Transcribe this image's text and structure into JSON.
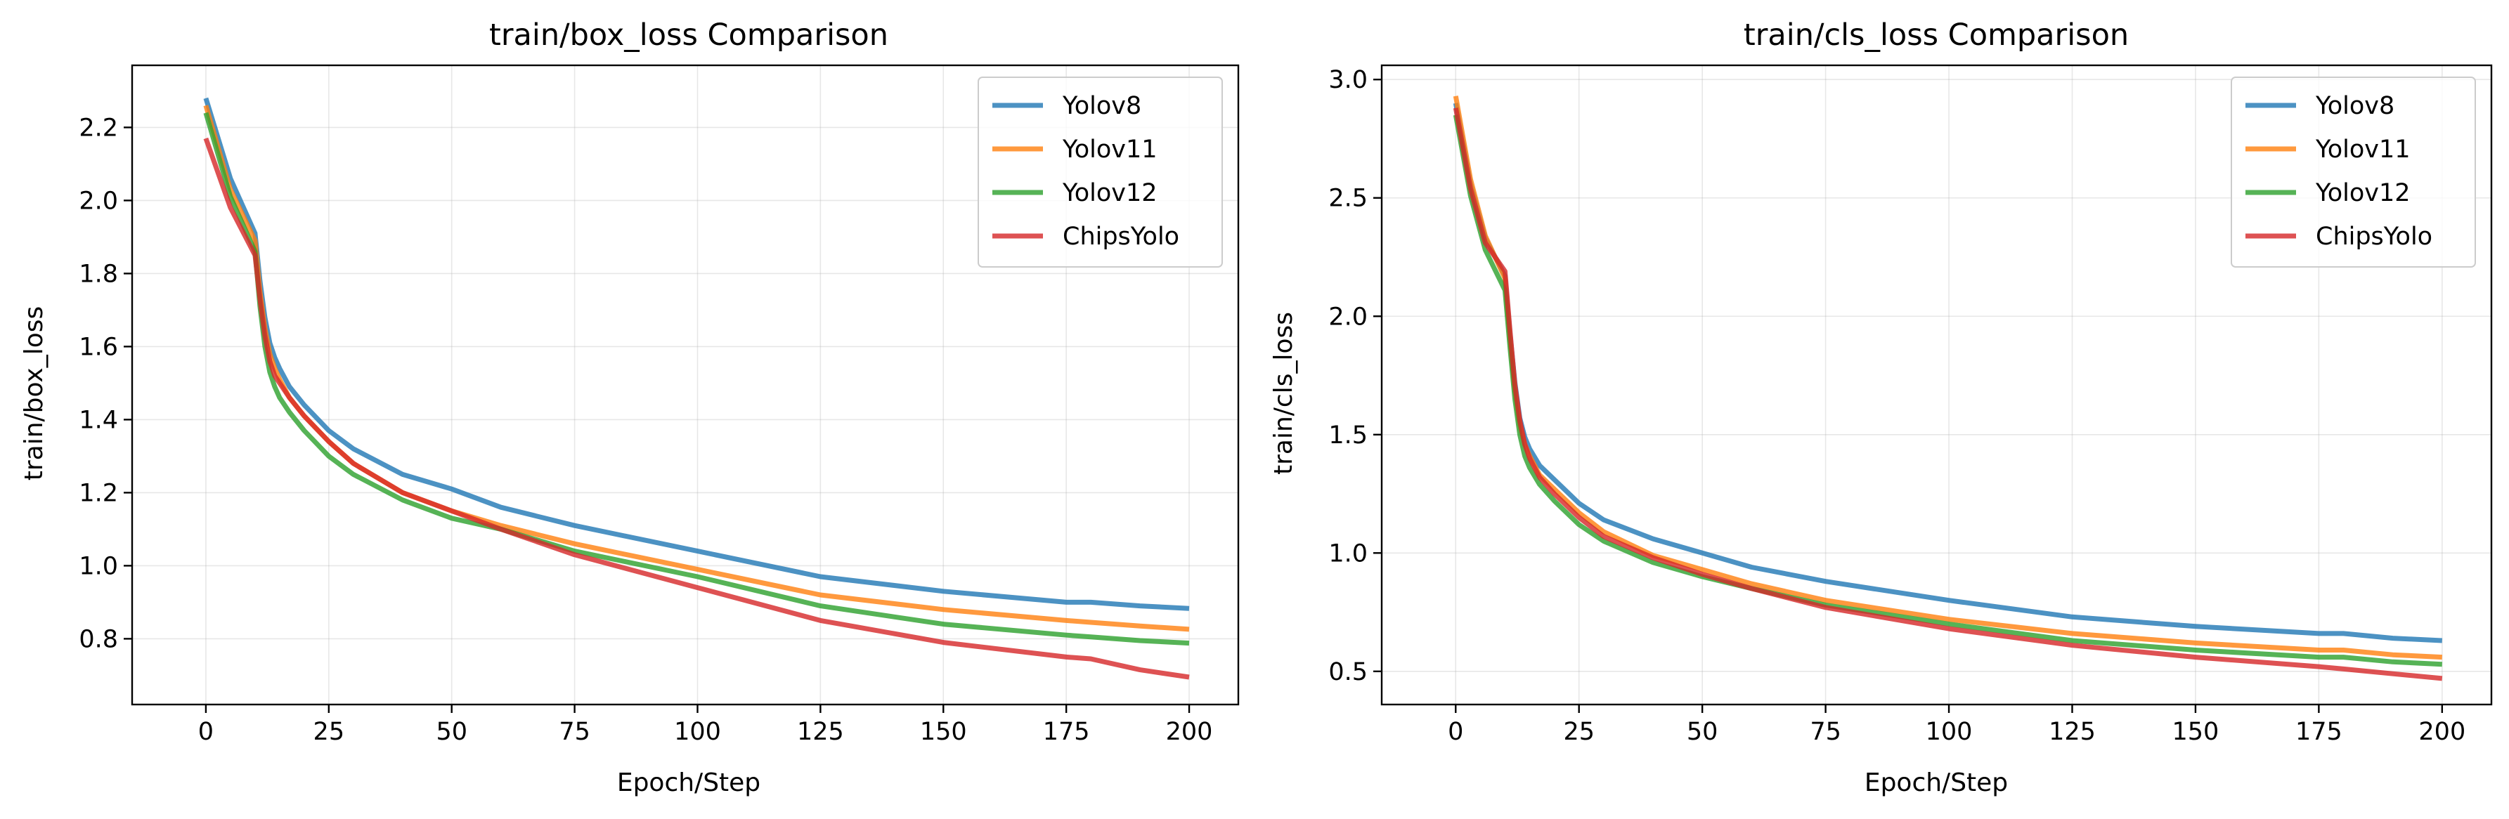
{
  "chart_data": [
    {
      "type": "line",
      "title": "train/box_loss Comparison",
      "xlabel": "Epoch/Step",
      "ylabel": "train/box_loss",
      "xlim": [
        -15,
        210
      ],
      "ylim": [
        0.62,
        2.37
      ],
      "xticks": [
        0,
        25,
        50,
        75,
        100,
        125,
        150,
        175,
        200
      ],
      "xtick_labels": [
        "0",
        "25",
        "50",
        "75",
        "100",
        "125",
        "150",
        "175",
        "200"
      ],
      "yticks": [
        0.8,
        1.0,
        1.2,
        1.4,
        1.6,
        1.8,
        2.0,
        2.2
      ],
      "ytick_labels": [
        "0.8",
        "1.0",
        "1.2",
        "1.4",
        "1.6",
        "1.8",
        "2.0",
        "2.2"
      ],
      "grid": true,
      "legend": "top-right",
      "x": [
        0,
        5,
        10,
        11,
        12,
        13,
        14,
        15,
        17,
        20,
        25,
        30,
        40,
        50,
        60,
        75,
        100,
        125,
        150,
        175,
        180,
        185,
        190,
        200
      ],
      "series": [
        {
          "name": "Yolov8",
          "color": "#1f77b4",
          "values": [
            2.28,
            2.06,
            1.91,
            1.78,
            1.68,
            1.61,
            1.57,
            1.54,
            1.49,
            1.44,
            1.37,
            1.32,
            1.25,
            1.21,
            1.16,
            1.11,
            1.04,
            0.97,
            0.93,
            0.9,
            0.9,
            0.895,
            0.89,
            0.883
          ]
        },
        {
          "name": "Yolov11",
          "color": "#ff7f0e",
          "values": [
            2.26,
            2.03,
            1.89,
            1.75,
            1.65,
            1.58,
            1.54,
            1.51,
            1.46,
            1.41,
            1.34,
            1.28,
            1.2,
            1.15,
            1.11,
            1.06,
            0.99,
            0.92,
            0.88,
            0.85,
            0.845,
            0.84,
            0.835,
            0.826
          ]
        },
        {
          "name": "Yolov12",
          "color": "#2ca02c",
          "values": [
            2.24,
            2.01,
            1.86,
            1.71,
            1.6,
            1.53,
            1.49,
            1.46,
            1.42,
            1.37,
            1.3,
            1.25,
            1.18,
            1.13,
            1.1,
            1.04,
            0.97,
            0.89,
            0.84,
            0.81,
            0.805,
            0.8,
            0.795,
            0.788
          ]
        },
        {
          "name": "ChipsYolo",
          "color": "#d62728",
          "values": [
            2.17,
            1.98,
            1.85,
            1.73,
            1.63,
            1.56,
            1.52,
            1.5,
            1.46,
            1.41,
            1.34,
            1.28,
            1.2,
            1.15,
            1.1,
            1.03,
            0.94,
            0.85,
            0.79,
            0.75,
            0.745,
            0.73,
            0.715,
            0.695
          ]
        }
      ]
    },
    {
      "type": "line",
      "title": "train/cls_loss Comparison",
      "xlabel": "Epoch/Step",
      "ylabel": "train/cls_loss",
      "xlim": [
        -15,
        210
      ],
      "ylim": [
        0.36,
        3.06
      ],
      "xticks": [
        0,
        25,
        50,
        75,
        100,
        125,
        150,
        175,
        200
      ],
      "xtick_labels": [
        "0",
        "25",
        "50",
        "75",
        "100",
        "125",
        "150",
        "175",
        "200"
      ],
      "yticks": [
        0.5,
        1.0,
        1.5,
        2.0,
        2.5,
        3.0
      ],
      "ytick_labels": [
        "0.5",
        "1.0",
        "1.5",
        "2.0",
        "2.5",
        "3.0"
      ],
      "grid": true,
      "legend": "top-right",
      "x": [
        0,
        3,
        6,
        10,
        11,
        12,
        13,
        14,
        15,
        17,
        20,
        25,
        30,
        40,
        50,
        60,
        75,
        100,
        125,
        150,
        175,
        180,
        190,
        200
      ],
      "series": [
        {
          "name": "Yolov8",
          "color": "#1f77b4",
          "values": [
            2.9,
            2.56,
            2.33,
            2.17,
            1.93,
            1.72,
            1.57,
            1.49,
            1.44,
            1.37,
            1.31,
            1.21,
            1.14,
            1.06,
            1.0,
            0.94,
            0.88,
            0.8,
            0.73,
            0.69,
            0.66,
            0.66,
            0.64,
            0.63
          ]
        },
        {
          "name": "Yolov11",
          "color": "#ff7f0e",
          "values": [
            2.93,
            2.58,
            2.34,
            2.16,
            1.91,
            1.69,
            1.54,
            1.46,
            1.41,
            1.33,
            1.27,
            1.17,
            1.09,
            0.99,
            0.93,
            0.87,
            0.8,
            0.72,
            0.66,
            0.62,
            0.59,
            0.59,
            0.57,
            0.56
          ]
        },
        {
          "name": "Yolov12",
          "color": "#2ca02c",
          "values": [
            2.85,
            2.51,
            2.28,
            2.11,
            1.87,
            1.65,
            1.5,
            1.41,
            1.36,
            1.29,
            1.22,
            1.12,
            1.05,
            0.96,
            0.9,
            0.85,
            0.78,
            0.7,
            0.63,
            0.59,
            0.56,
            0.56,
            0.54,
            0.53
          ]
        },
        {
          "name": "ChipsYolo",
          "color": "#d62728",
          "values": [
            2.88,
            2.54,
            2.31,
            2.19,
            1.94,
            1.71,
            1.56,
            1.46,
            1.4,
            1.32,
            1.25,
            1.15,
            1.07,
            0.98,
            0.91,
            0.85,
            0.77,
            0.68,
            0.61,
            0.56,
            0.52,
            0.51,
            0.49,
            0.47
          ]
        }
      ]
    }
  ]
}
